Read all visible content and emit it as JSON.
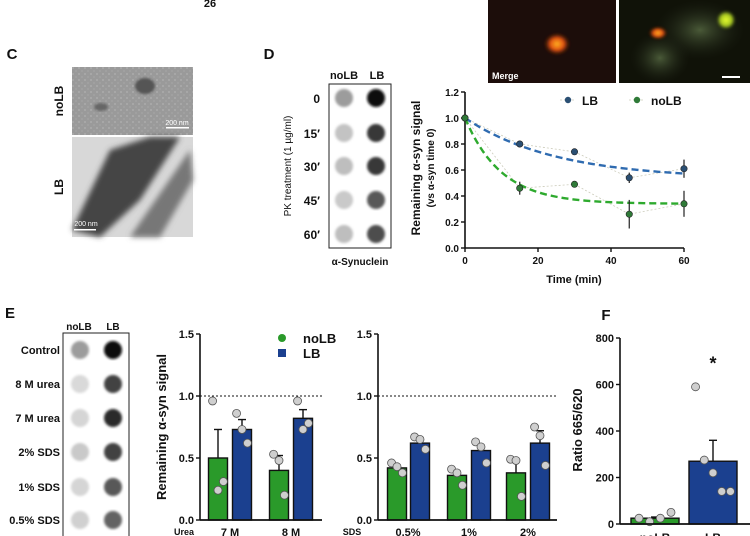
{
  "top_fragment": {
    "text": "26"
  },
  "micrographs": {
    "merge_label": "Merge"
  },
  "panel_c": {
    "label": "C",
    "rows": [
      "noLB",
      "LB"
    ],
    "scale_bars": [
      "200 nm",
      "200 nm"
    ]
  },
  "panel_d": {
    "label": "D",
    "blot": {
      "columns": [
        "noLB",
        "LB"
      ],
      "rows": [
        "0",
        "15′",
        "30′",
        "45′",
        "60′"
      ],
      "y_label": "PK treatment (1 µg/ml)",
      "antibody": "α-Synuclein",
      "intensity_noLB": [
        0.35,
        0.18,
        0.2,
        0.15,
        0.2
      ],
      "intensity_LB": [
        1.0,
        0.8,
        0.8,
        0.65,
        0.7
      ]
    }
  },
  "panel_e": {
    "label": "E",
    "blot": {
      "columns": [
        "noLB",
        "LB"
      ],
      "rows": [
        "Control",
        "8 M urea",
        "7 M urea",
        "2% SDS",
        "1% SDS",
        "0.5% SDS"
      ],
      "intensity_noLB": [
        0.35,
        0.08,
        0.1,
        0.15,
        0.1,
        0.12
      ],
      "intensity_LB": [
        1.0,
        0.75,
        0.85,
        0.75,
        0.65,
        0.6
      ]
    }
  },
  "panel_f": {
    "label": "F"
  },
  "colors": {
    "noLB": "#2a9a2a",
    "LB": "#1b408f",
    "lb_marker": "#2b4f73",
    "nolb_marker": "#2f7a38",
    "lb_fit": "#2f6bb0",
    "nolb_fit": "#2eaa2e",
    "point": "#cfcfcf"
  },
  "chart_data": [
    {
      "id": "D-kinetics",
      "type": "line",
      "xlabel": "Time (min)",
      "ylabel": "Remaining α-syn signal",
      "ylabel2": "(vs α-syn time 0)",
      "xlim": [
        0,
        60
      ],
      "ylim": [
        0,
        1.2
      ],
      "xticks": [
        "0",
        "20",
        "40",
        "60"
      ],
      "yticks": [
        "0.0",
        "0.2",
        "0.4",
        "0.6",
        "0.8",
        "1.0",
        "1.2"
      ],
      "legend": "top-right",
      "series": [
        {
          "name": "LB",
          "x": [
            0,
            15,
            30,
            45,
            60
          ],
          "y": [
            1.0,
            0.8,
            0.74,
            0.54,
            0.61
          ],
          "err": [
            0,
            0.01,
            0.01,
            0.04,
            0.07
          ],
          "fit": {
            "plateau": 0.53,
            "k": 0.04
          }
        },
        {
          "name": "noLB",
          "x": [
            0,
            15,
            30,
            45,
            60
          ],
          "y": [
            1.0,
            0.46,
            0.49,
            0.26,
            0.34
          ],
          "err": [
            0,
            0.05,
            0.01,
            0.11,
            0.1
          ],
          "fit": {
            "plateau": 0.34,
            "k": 0.1
          }
        }
      ]
    },
    {
      "id": "E-urea",
      "type": "bar",
      "ylabel": "Remaining α-syn signal",
      "group_label": "Urea",
      "categories": [
        "7 M",
        "8 M"
      ],
      "ylim": [
        0,
        1.5
      ],
      "yticks": [
        "0.0",
        "0.5",
        "1.0",
        "1.5"
      ],
      "reference_line": 1.0,
      "legend": [
        "noLB",
        "LB"
      ],
      "series": [
        {
          "name": "noLB",
          "values": [
            0.5,
            0.4
          ],
          "err": [
            0.23,
            0.12
          ],
          "points": [
            [
              0.96,
              0.24,
              0.31
            ],
            [
              0.53,
              0.48,
              0.2
            ]
          ]
        },
        {
          "name": "LB",
          "values": [
            0.73,
            0.82
          ],
          "err": [
            0.08,
            0.07
          ],
          "points": [
            [
              0.86,
              0.73,
              0.62
            ],
            [
              0.96,
              0.73,
              0.78
            ]
          ]
        }
      ]
    },
    {
      "id": "E-sds",
      "type": "bar",
      "group_label": "SDS",
      "categories": [
        "0.5%",
        "1%",
        "2%"
      ],
      "ylim": [
        0,
        1.5
      ],
      "yticks": [
        "0.0",
        "0.5",
        "1.0",
        "1.5"
      ],
      "reference_line": 1.0,
      "series": [
        {
          "name": "noLB",
          "values": [
            0.42,
            0.36,
            0.38
          ],
          "err": [
            0.02,
            0.03,
            0.09
          ],
          "points": [
            [
              0.46,
              0.43,
              0.38
            ],
            [
              0.41,
              0.38,
              0.28
            ],
            [
              0.49,
              0.48,
              0.19
            ]
          ]
        },
        {
          "name": "LB",
          "values": [
            0.62,
            0.56,
            0.62
          ],
          "err": [
            0.03,
            0.04,
            0.1
          ],
          "points": [
            [
              0.67,
              0.65,
              0.57
            ],
            [
              0.63,
              0.59,
              0.46
            ],
            [
              0.75,
              0.68,
              0.44
            ]
          ]
        }
      ]
    },
    {
      "id": "F-ratio",
      "type": "bar",
      "ylabel": "Ratio 665/620",
      "categories": [
        "noLB",
        "LB"
      ],
      "ylim": [
        0,
        800
      ],
      "yticks": [
        "0",
        "200",
        "400",
        "600",
        "800"
      ],
      "values": [
        25,
        270
      ],
      "err": [
        5,
        90
      ],
      "points": [
        [
          25,
          10,
          25,
          50
        ],
        [
          590,
          275,
          220,
          140,
          140
        ]
      ],
      "annotation": "*"
    }
  ]
}
